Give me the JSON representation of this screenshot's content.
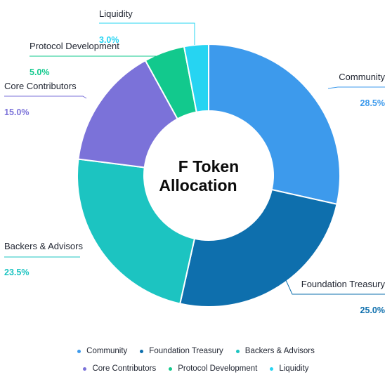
{
  "chart_data": {
    "type": "pie",
    "title": "F Token Allocation",
    "title_lines": [
      "F Token",
      "Allocation"
    ],
    "categories": [
      "Community",
      "Foundation Treasury",
      "Backers & Advisors",
      "Core Contributors",
      "Protocol Development",
      "Liquidity"
    ],
    "values": [
      28.5,
      25.0,
      23.5,
      15.0,
      5.0,
      3.0
    ],
    "value_labels": [
      "28.5%",
      "25.0%",
      "23.5%",
      "15.0%",
      "5.0%",
      "3.0%"
    ],
    "colors": [
      "#3d9aec",
      "#0e6fad",
      "#1cc4c1",
      "#7b72d9",
      "#12c98d",
      "#26d4f2"
    ],
    "value_label_colors": [
      "#3d9aec",
      "#0e6fad",
      "#1cc4c1",
      "#7b72d9",
      "#12c98d",
      "#26d4f2"
    ],
    "donut": true,
    "start_angle_deg": 0,
    "direction": "clockwise",
    "legend_position": "bottom",
    "legend_rows": [
      [
        "Community",
        "Foundation Treasury",
        "Backers & Advisors"
      ],
      [
        "Core Contributors",
        "Protocol Development",
        "Liquidity"
      ]
    ]
  }
}
